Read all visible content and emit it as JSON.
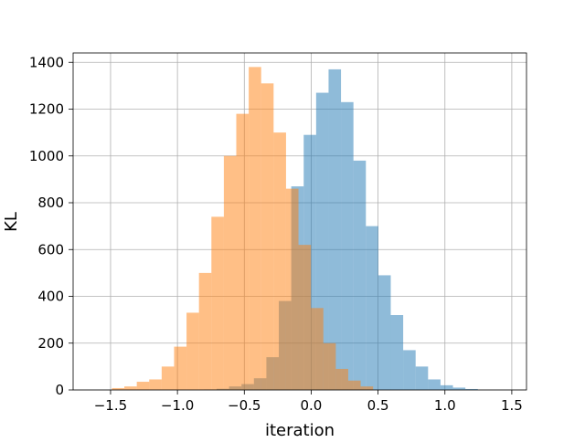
{
  "chart_data": {
    "type": "histogram",
    "title": "",
    "xlabel": "iteration",
    "ylabel": "KL",
    "xlim": [
      -1.78,
      1.61
    ],
    "ylim": [
      0,
      1440
    ],
    "xticks": [
      -1.5,
      -1.0,
      -0.5,
      0.0,
      0.5,
      1.0,
      1.5
    ],
    "xtick_labels": [
      "−1.5",
      "−1.0",
      "−0.5",
      "0.0",
      "0.5",
      "1.0",
      "1.5"
    ],
    "yticks": [
      0,
      200,
      400,
      600,
      800,
      1000,
      1200,
      1400
    ],
    "ytick_labels": [
      "0",
      "200",
      "400",
      "600",
      "800",
      "1000",
      "1200",
      "1400"
    ],
    "grid": true,
    "legend": false,
    "overlap_color": "#c19a73",
    "series": [
      {
        "color": "#1f77b4",
        "opacity": 0.5,
        "bin_start": -0.8,
        "bin_width": 0.093,
        "values": [
          2,
          5,
          15,
          25,
          50,
          140,
          380,
          870,
          1090,
          1270,
          1370,
          1230,
          980,
          700,
          490,
          320,
          170,
          100,
          45,
          20,
          10,
          4
        ]
      },
      {
        "color": "#ff7f0e",
        "opacity": 0.5,
        "bin_start": -1.49,
        "bin_width": 0.093,
        "values": [
          8,
          15,
          35,
          45,
          100,
          185,
          330,
          500,
          740,
          1000,
          1180,
          1380,
          1310,
          1100,
          860,
          620,
          350,
          200,
          90,
          40,
          15
        ]
      }
    ]
  }
}
